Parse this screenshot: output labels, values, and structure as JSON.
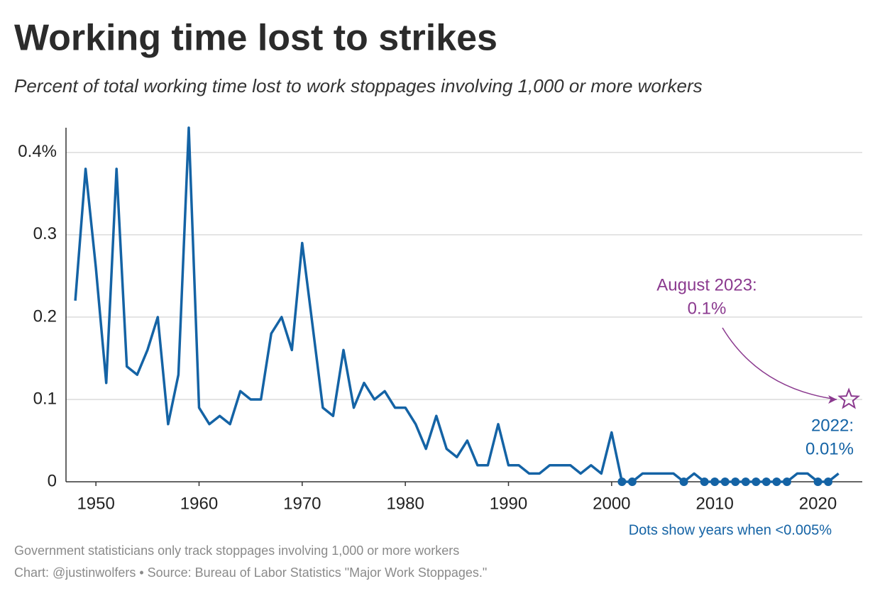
{
  "chart_data": {
    "type": "line",
    "title": "Working time lost to strikes",
    "subtitle": "Percent of total working time lost to work stoppages involving 1,000 or more workers",
    "x": [
      1948,
      1949,
      1950,
      1951,
      1952,
      1953,
      1954,
      1955,
      1956,
      1957,
      1958,
      1959,
      1960,
      1961,
      1962,
      1963,
      1964,
      1965,
      1966,
      1967,
      1968,
      1969,
      1970,
      1971,
      1972,
      1973,
      1974,
      1975,
      1976,
      1977,
      1978,
      1979,
      1980,
      1981,
      1982,
      1983,
      1984,
      1985,
      1986,
      1987,
      1988,
      1989,
      1990,
      1991,
      1992,
      1993,
      1994,
      1995,
      1996,
      1997,
      1998,
      1999,
      2000,
      2001,
      2002,
      2003,
      2004,
      2005,
      2006,
      2007,
      2008,
      2009,
      2010,
      2011,
      2012,
      2013,
      2014,
      2015,
      2016,
      2017,
      2018,
      2019,
      2020,
      2021,
      2022
    ],
    "values": [
      0.22,
      0.38,
      0.26,
      0.12,
      0.38,
      0.14,
      0.13,
      0.16,
      0.2,
      0.07,
      0.13,
      0.43,
      0.09,
      0.07,
      0.08,
      0.07,
      0.11,
      0.1,
      0.1,
      0.18,
      0.2,
      0.16,
      0.29,
      0.19,
      0.09,
      0.08,
      0.16,
      0.09,
      0.12,
      0.1,
      0.11,
      0.09,
      0.09,
      0.07,
      0.04,
      0.08,
      0.04,
      0.03,
      0.05,
      0.02,
      0.02,
      0.07,
      0.02,
      0.02,
      0.01,
      0.01,
      0.02,
      0.02,
      0.02,
      0.01,
      0.02,
      0.01,
      0.06,
      0,
      0,
      0.01,
      0.01,
      0.01,
      0.01,
      0,
      0.01,
      0,
      0,
      0,
      0,
      0,
      0,
      0,
      0,
      0,
      0.01,
      0.01,
      0,
      0,
      0.01
    ],
    "color": "#1463a5",
    "xlim": [
      1947.1,
      2024.3
    ],
    "xticks": [
      1950,
      1960,
      1970,
      1980,
      1990,
      2000,
      2010,
      2020
    ],
    "ylim": [
      0,
      0.43
    ],
    "yticks": [
      0,
      0.1,
      0.2,
      0.3,
      {
        "value": 0.4,
        "label": "0.4%"
      }
    ],
    "grid": true,
    "highlight": {
      "label": [
        "August 2023:",
        "0.1%"
      ],
      "x": 2023,
      "value": 0.1,
      "color": "#8b3a8f"
    },
    "last_label": [
      "2022:",
      "0.01%"
    ],
    "dots_note": "Dots show years when <0.005%",
    "notes": [
      "Government statisticians only track stoppages involving 1,000 or more workers",
      "Chart: @justinwolfers • Source: Bureau of Labor Statistics \"Major Work Stoppages.\""
    ]
  }
}
